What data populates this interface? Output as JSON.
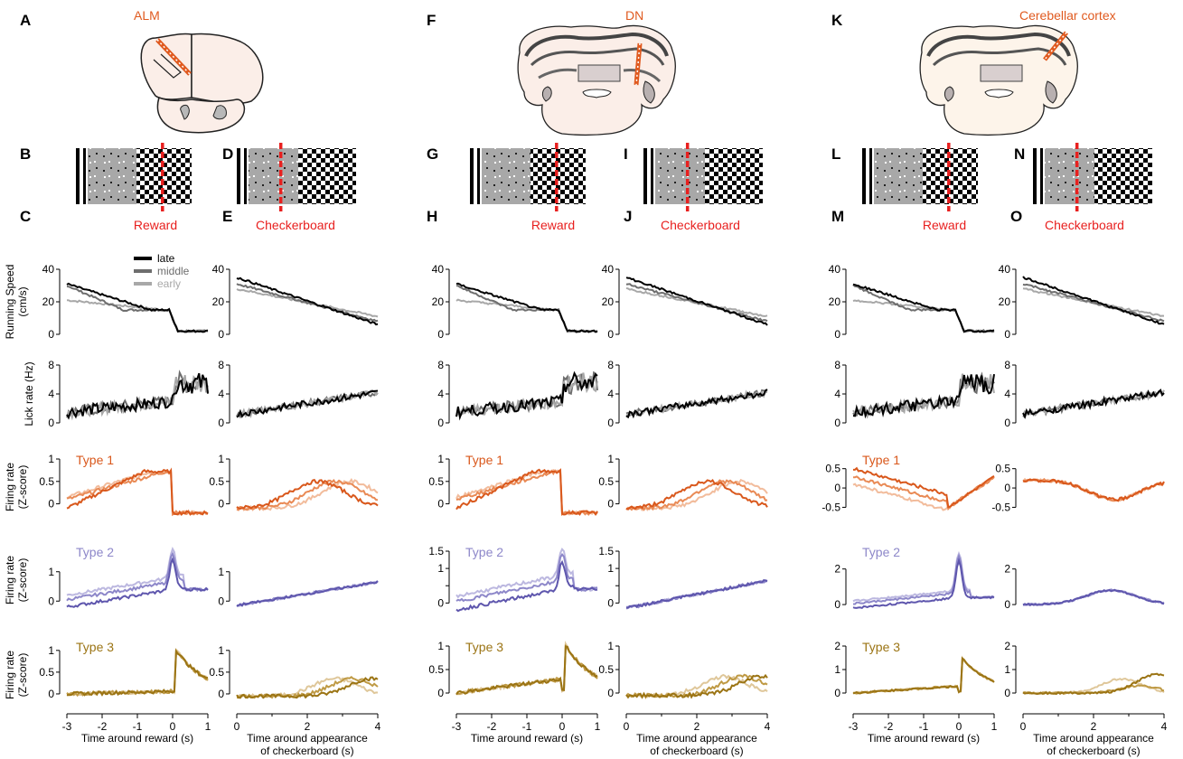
{
  "panel_letters": [
    "A",
    "B",
    "C",
    "D",
    "E",
    "F",
    "G",
    "H",
    "I",
    "J",
    "K",
    "L",
    "M",
    "N",
    "O"
  ],
  "regions": [
    "ALM",
    "DN",
    "Cerebellar cortex"
  ],
  "event_labels": {
    "reward": "Reward",
    "checkerboard": "Checkerboard"
  },
  "legend": {
    "late": "late",
    "middle": "middle",
    "early": "early"
  },
  "ylabels": {
    "speed": [
      "Running Speed",
      "(cm/s)"
    ],
    "lick": [
      "Lick rate (Hz)"
    ],
    "firing": [
      "Firing rate",
      "(Z-score)"
    ]
  },
  "type_labels": [
    "Type 1",
    "Type 2",
    "Type 3"
  ],
  "xlabels": {
    "reward": [
      "Time around reward (s)"
    ],
    "checker": [
      "Time around appearance",
      "of checkerboard (s)"
    ]
  },
  "colors": {
    "late": "#000000",
    "middle": "#6e6e6e",
    "early": "#a8a8a8",
    "type1": [
      "#d9581c",
      "#e98a55",
      "#f2bc9c"
    ],
    "type2": [
      "#5e56ad",
      "#8d87c9",
      "#bcb8e0"
    ],
    "type3": [
      "#9b7414",
      "#bf9a45",
      "#dfc79a"
    ],
    "event_red": "#e8201f"
  },
  "chart_data": [
    {
      "type": "line",
      "region": "ALM",
      "align": "reward",
      "variable": "running_speed",
      "ylabel": "Running Speed (cm/s)",
      "xlabel": "Time around reward (s)",
      "xlim": [
        -3,
        1
      ],
      "ylim": [
        0,
        40
      ],
      "yticks": [
        0,
        20,
        40
      ],
      "series": [
        {
          "name": "late",
          "x": [
            -3,
            -2,
            -1,
            -0.5,
            0,
            0.1,
            0.3,
            1
          ],
          "y": [
            31,
            31,
            20,
            17,
            15,
            2,
            1,
            1
          ]
        },
        {
          "name": "middle",
          "x": [
            -3,
            -2.5,
            -2,
            -1.5,
            -1,
            0,
            0.1,
            0.3,
            1
          ],
          "y": [
            30,
            29,
            26,
            18,
            16,
            15,
            3,
            1,
            1
          ]
        },
        {
          "name": "early",
          "x": [
            -3,
            -2.5,
            -2,
            -1,
            0,
            0.1,
            0.3,
            1
          ],
          "y": [
            21,
            18,
            17,
            16,
            14,
            3,
            1,
            1
          ]
        }
      ]
    },
    {
      "type": "line",
      "region": "ALM",
      "align": "checkerboard",
      "variable": "running_speed",
      "ylabel": "",
      "xlabel": "Time around appearance of checkerboard (s)",
      "xlim": [
        0,
        4
      ],
      "ylim": [
        0,
        40
      ],
      "yticks": [
        0,
        20,
        40
      ],
      "series": [
        {
          "name": "late",
          "x": [
            0,
            0.5,
            1,
            2,
            3,
            4
          ],
          "y": [
            34,
            33,
            28,
            18,
            10,
            6
          ]
        },
        {
          "name": "middle",
          "x": [
            0,
            1,
            2,
            3,
            4
          ],
          "y": [
            30,
            25,
            18,
            12,
            7
          ]
        },
        {
          "name": "early",
          "x": [
            0,
            0.5,
            1,
            2,
            3,
            4
          ],
          "y": [
            28,
            26,
            23,
            17,
            12,
            11
          ]
        }
      ]
    },
    {
      "type": "line",
      "region": "ALM",
      "align": "reward",
      "variable": "lick_rate",
      "ylabel": "Lick rate (Hz)",
      "xlim": [
        -3,
        1
      ],
      "ylim": [
        0,
        8
      ],
      "yticks": [
        0,
        4,
        8
      ],
      "series": [
        {
          "name": "late",
          "x": [
            -3,
            -2,
            -1,
            0,
            0.1,
            0.3,
            0.5,
            1
          ],
          "y": [
            1.5,
            2,
            3,
            3.5,
            7.5,
            4,
            7,
            5
          ]
        },
        {
          "name": "middle",
          "x": [
            -3,
            -2,
            -1,
            0,
            0.1,
            0.5,
            1
          ],
          "y": [
            1.8,
            2.5,
            3,
            3.5,
            6,
            6.5,
            5.5
          ]
        },
        {
          "name": "early",
          "x": [
            -3,
            -2,
            -1,
            0,
            0.1,
            0.5,
            1
          ],
          "y": [
            1.7,
            2.2,
            3,
            3.8,
            6,
            6,
            6
          ]
        }
      ]
    },
    {
      "type": "line",
      "region": "ALM",
      "align": "checkerboard",
      "variable": "lick_rate",
      "ylabel": "",
      "xlim": [
        0,
        4
      ],
      "ylim": [
        0,
        8
      ],
      "yticks": [
        0,
        4,
        8
      ],
      "series": [
        {
          "name": "late",
          "x": [
            0,
            1,
            2,
            3,
            4
          ],
          "y": [
            1.2,
            1.8,
            2.5,
            3.2,
            4
          ]
        },
        {
          "name": "middle",
          "x": [
            0,
            1,
            2,
            3,
            4
          ],
          "y": [
            1.4,
            2,
            2.6,
            3.4,
            4.5
          ]
        },
        {
          "name": "early",
          "x": [
            0,
            1,
            2,
            3,
            4
          ],
          "y": [
            1.3,
            1.9,
            2.7,
            3.5,
            5
          ]
        }
      ]
    },
    {
      "type": "line",
      "region": "ALM",
      "align": "reward",
      "variable": "firing_rate_type1",
      "ylabel": "Firing rate (Z-score)",
      "xlim": [
        -3,
        1
      ],
      "ylim": [
        -0.25,
        1
      ],
      "yticks": [
        0,
        0.5,
        1
      ],
      "yticklabels": [
        "0",
        "0.5",
        "1"
      ],
      "series": [
        {
          "name": "late",
          "x": [
            -3,
            -2.5,
            -2,
            -1,
            -0.5,
            0,
            0.1,
            0.3,
            1
          ],
          "y": [
            -0.1,
            -0.1,
            0.1,
            0.6,
            0.7,
            0.7,
            -0.1,
            -0.25,
            -0.25
          ]
        },
        {
          "name": "middle",
          "x": [
            -3,
            -2.5,
            -2,
            -1,
            -0.5,
            0,
            0.1,
            0.3,
            1
          ],
          "y": [
            0.1,
            0.3,
            0.4,
            0.6,
            0.75,
            0.7,
            -0.1,
            -0.25,
            -0.25
          ]
        },
        {
          "name": "early",
          "x": [
            -3,
            -2.5,
            -2,
            -1,
            -0.5,
            0,
            0.1,
            0.3,
            1
          ],
          "y": [
            0.1,
            0.4,
            0.5,
            0.7,
            0.75,
            0.75,
            -0.1,
            -0.25,
            -0.25
          ]
        }
      ]
    },
    {
      "type": "line",
      "region": "ALM",
      "align": "checkerboard",
      "variable": "firing_rate_type1",
      "xlim": [
        0,
        4
      ],
      "ylim": [
        -0.25,
        1
      ],
      "yticks": [
        0,
        0.5,
        1
      ],
      "series": [
        {
          "name": "late",
          "x": [
            0,
            1,
            2,
            2.5,
            3,
            4
          ],
          "y": [
            -0.1,
            0.1,
            0.4,
            0.35,
            0.15,
            -0.05
          ]
        },
        {
          "name": "middle",
          "x": [
            0,
            1,
            2,
            2.5,
            3,
            3.5,
            4
          ],
          "y": [
            -0.1,
            0.05,
            0.3,
            0.5,
            0.55,
            0.45,
            0.3
          ]
        },
        {
          "name": "early",
          "x": [
            0,
            1,
            2,
            3,
            3.5,
            4
          ],
          "y": [
            -0.1,
            0.05,
            0.35,
            0.6,
            0.6,
            0.5
          ]
        }
      ]
    },
    {
      "type": "line",
      "region": "ALM",
      "align": "reward",
      "variable": "firing_rate_type2",
      "ylabel": "Firing rate (Z-score)",
      "xlim": [
        -3,
        1
      ],
      "ylim": [
        -0.3,
        1.6
      ],
      "yticks": [
        0,
        0.5,
        1,
        1.5
      ],
      "yticklabels": [
        "0",
        "",
        "1",
        ""
      ],
      "series": [
        {
          "name": "late",
          "x": [
            -3,
            -2,
            -1,
            -0.2,
            0,
            0.3,
            1
          ],
          "y": [
            -0.3,
            -0.1,
            0.2,
            0.5,
            1.6,
            0.5,
            0.4
          ]
        },
        {
          "name": "middle",
          "x": [
            -3,
            -2,
            -1,
            -0.2,
            0,
            0.3,
            1
          ],
          "y": [
            0.1,
            0.3,
            0.6,
            0.7,
            1.3,
            0.5,
            0.4
          ]
        },
        {
          "name": "early",
          "x": [
            -3,
            -2,
            -1,
            -0.2,
            0,
            0.3,
            1
          ],
          "y": [
            0.2,
            0.4,
            0.7,
            0.8,
            1.2,
            0.5,
            0.4
          ]
        }
      ]
    },
    {
      "type": "line",
      "region": "ALM",
      "align": "checkerboard",
      "variable": "firing_rate_type2",
      "xlim": [
        0,
        4
      ],
      "ylim": [
        -0.3,
        1.6
      ],
      "yticks": [
        0,
        0.5,
        1,
        1.5
      ],
      "series": [
        {
          "name": "late",
          "x": [
            0,
            1,
            2,
            3,
            4
          ],
          "y": [
            -0.2,
            0,
            0.3,
            0.6,
            0.4
          ]
        },
        {
          "name": "middle",
          "x": [
            0,
            1,
            2,
            3,
            4
          ],
          "y": [
            -0.2,
            0.05,
            0.3,
            0.7,
            0.8
          ]
        },
        {
          "name": "early",
          "x": [
            0,
            1,
            2,
            3,
            4
          ],
          "y": [
            -0.1,
            0.1,
            0.35,
            0.6,
            0.7
          ]
        }
      ]
    },
    {
      "type": "line",
      "region": "ALM",
      "align": "reward",
      "variable": "firing_rate_type3",
      "ylabel": "Firing rate (Z-score)",
      "xlim": [
        -3,
        1
      ],
      "ylim": [
        -0.25,
        1.1
      ],
      "yticks": [
        0,
        0.5,
        1
      ],
      "series": [
        {
          "name": "late",
          "x": [
            -3,
            -1,
            0,
            0.1,
            0.5,
            1
          ],
          "y": [
            -0.1,
            0,
            0,
            1,
            0.75,
            0.55
          ]
        },
        {
          "name": "middle",
          "x": [
            -3,
            -1,
            0,
            0.1,
            0.5,
            1
          ],
          "y": [
            -0.05,
            0,
            0,
            0.95,
            0.7,
            0.5
          ]
        },
        {
          "name": "early",
          "x": [
            -3,
            -1,
            0,
            0.1,
            0.5,
            1
          ],
          "y": [
            0,
            0,
            0,
            0.9,
            0.65,
            0.45
          ]
        }
      ]
    },
    {
      "type": "line",
      "region": "ALM",
      "align": "checkerboard",
      "variable": "firing_rate_type3",
      "xlim": [
        0,
        4
      ],
      "ylim": [
        -0.25,
        1.1
      ],
      "yticks": [
        0,
        0.5,
        1
      ],
      "series": [
        {
          "name": "late",
          "x": [
            0,
            2,
            3,
            4
          ],
          "y": [
            -0.1,
            0,
            0.4,
            0.4
          ]
        },
        {
          "name": "middle",
          "x": [
            0,
            2,
            3,
            4
          ],
          "y": [
            -0.1,
            0.05,
            0.3,
            0.5
          ]
        },
        {
          "name": "early",
          "x": [
            0,
            2,
            3,
            4
          ],
          "y": [
            -0.1,
            0,
            0.1,
            0.2
          ]
        }
      ]
    }
  ]
}
